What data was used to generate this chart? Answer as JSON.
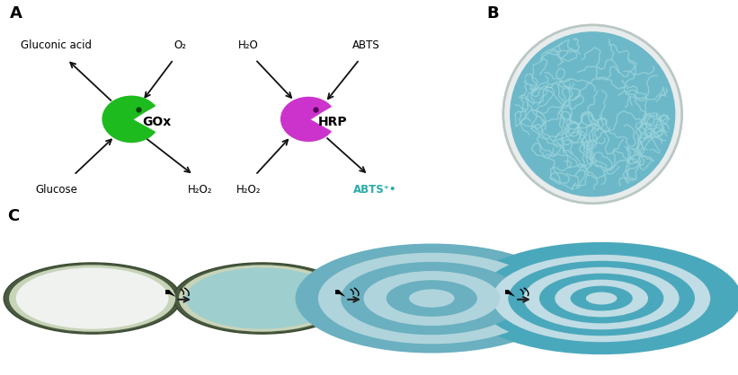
{
  "panel_A_label": "A",
  "panel_B_label": "B",
  "panel_C_label": "C",
  "background_color": "#ffffff",
  "gox_color": "#1dbb1d",
  "hrp_color": "#cc33cc",
  "gox_label": "GOx",
  "hrp_label": "HRP",
  "labels_gox_ul": "Gluconic acid",
  "labels_gox_ur": "O₂",
  "labels_gox_ll": "Glucose",
  "labels_gox_lr": "H₂O₂",
  "labels_hrp_ul": "H₂O",
  "labels_hrp_ur": "ABTS",
  "labels_hrp_ll": "H₂O₂",
  "labels_hrp_lr": "ABTS⁺•",
  "abts_color": "#2aaaaa",
  "panel_label_fontsize": 13,
  "text_fontsize": 8.5,
  "enzyme_label_fontsize": 10,
  "arrow_color": "#111111"
}
